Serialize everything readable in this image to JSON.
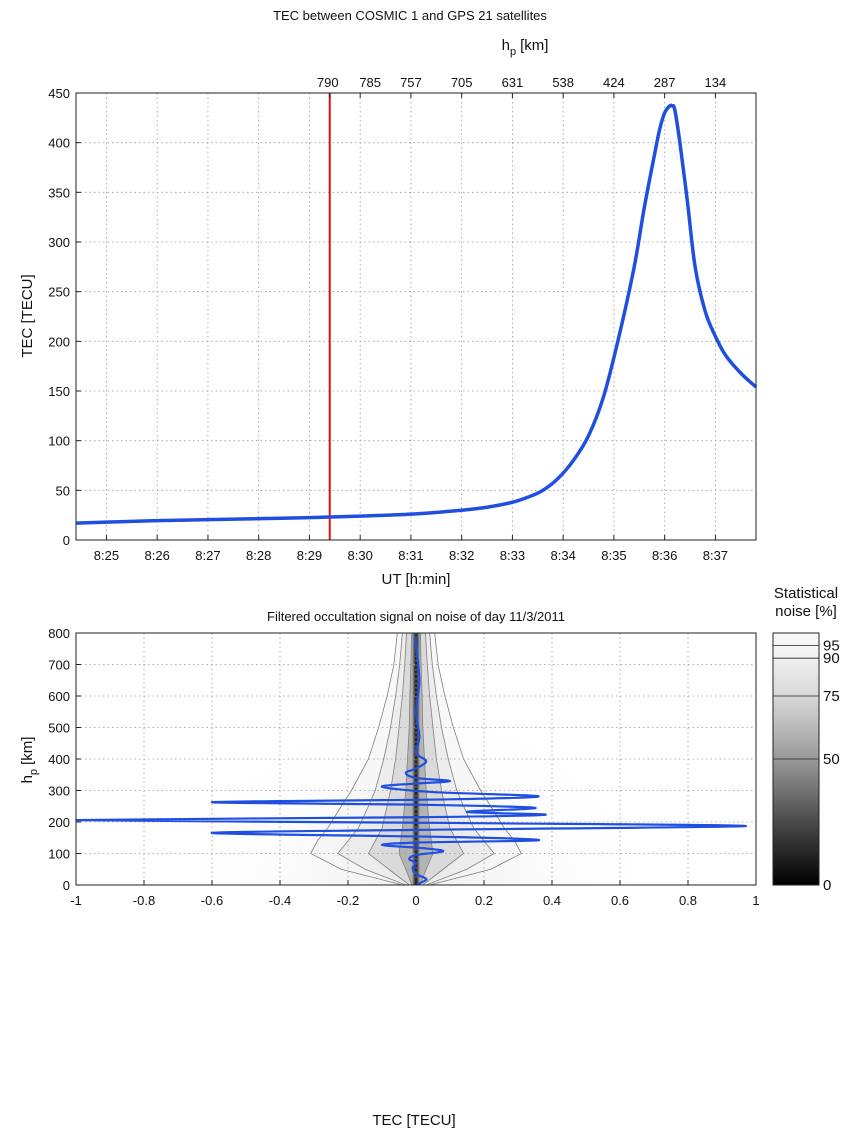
{
  "chart_data": [
    {
      "type": "line",
      "title": "TEC between COSMIC 1 and GPS 21 satellites",
      "xlabel": "UT [h:min]",
      "ylabel": "TEC [TECU]",
      "top_axis_label": "h",
      "top_axis_label_sub": "p",
      "top_axis_label_unit": "[km]",
      "xlim": [
        "8:24.4",
        "8:37.8"
      ],
      "xlim_min": [
        504.4,
        517.8
      ],
      "ylim": [
        0,
        450
      ],
      "x_ticks": [
        "8:25",
        "8:26",
        "8:27",
        "8:28",
        "8:29",
        "8:30",
        "8:31",
        "8:32",
        "8:33",
        "8:34",
        "8:35",
        "8:36",
        "8:37"
      ],
      "x_ticks_min": [
        505,
        506,
        507,
        508,
        509,
        510,
        511,
        512,
        513,
        514,
        515,
        516,
        517
      ],
      "y_ticks": [
        0,
        50,
        100,
        150,
        200,
        250,
        300,
        350,
        400,
        450
      ],
      "top_ticks": [
        "790",
        "785",
        "757",
        "705",
        "631",
        "538",
        "424",
        "287",
        "134"
      ],
      "top_ticks_min": [
        509.4,
        510,
        511,
        512,
        513,
        514,
        515,
        516,
        517
      ],
      "marker_time": "8:29.4",
      "marker_time_min": 509.4,
      "marker_color": "#e01010",
      "grid": true,
      "series": [
        {
          "color": "#1f4fe0",
          "x_min": [
            504.4,
            505,
            506,
            507,
            508,
            509,
            510,
            511,
            512,
            512.5,
            513,
            513.3,
            513.6,
            513.9,
            514.2,
            514.5,
            514.8,
            515.1,
            515.4,
            515.6,
            515.8,
            515.9,
            516.0,
            516.1,
            516.15,
            516.2,
            516.3,
            516.45,
            516.6,
            516.8,
            517.0,
            517.2,
            517.5,
            517.8
          ],
          "y": [
            17,
            18,
            19.5,
            20.5,
            21.5,
            22.5,
            24,
            26,
            30,
            33,
            38,
            43,
            50,
            62,
            80,
            105,
            145,
            205,
            275,
            335,
            388,
            413,
            430,
            437,
            437,
            433,
            400,
            340,
            275,
            230,
            205,
            186,
            168,
            154
          ]
        }
      ]
    },
    {
      "type": "heatmap",
      "title": "Filtered occultation signal on noise of day 11/3/2011",
      "xlabel": "TEC [TECU]",
      "ylabel": "h",
      "ylabel_sub": "p",
      "ylabel_unit": "[km]",
      "xlim": [
        -1,
        1
      ],
      "ylim": [
        0,
        800
      ],
      "x_ticks": [
        "-1",
        "-0.8",
        "-0.6",
        "-0.4",
        "-0.2",
        "0",
        "0.2",
        "0.4",
        "0.6",
        "0.8",
        "1"
      ],
      "y_ticks": [
        0,
        100,
        200,
        300,
        400,
        500,
        600,
        700,
        800
      ],
      "grid": true,
      "colorbar": {
        "title_line1": "Statistical",
        "title_line2": "noise [%]",
        "ticks": [
          0,
          50,
          75,
          90,
          95
        ]
      },
      "noise_contours": [
        {
          "level": 50,
          "profile": [
            [
              0,
              0.012
            ],
            [
              50,
              0.03
            ],
            [
              100,
              0.05
            ],
            [
              140,
              0.045
            ],
            [
              180,
              0.04
            ],
            [
              250,
              0.034
            ],
            [
              300,
              0.03
            ],
            [
              400,
              0.025
            ],
            [
              500,
              0.02
            ],
            [
              600,
              0.018
            ],
            [
              700,
              0.015
            ],
            [
              800,
              0.013
            ]
          ]
        },
        {
          "level": 75,
          "profile": [
            [
              0,
              0.02
            ],
            [
              50,
              0.08
            ],
            [
              100,
              0.14
            ],
            [
              140,
              0.12
            ],
            [
              180,
              0.1
            ],
            [
              250,
              0.085
            ],
            [
              300,
              0.075
            ],
            [
              400,
              0.06
            ],
            [
              500,
              0.05
            ],
            [
              600,
              0.04
            ],
            [
              700,
              0.033
            ],
            [
              800,
              0.028
            ]
          ]
        },
        {
          "level": 90,
          "profile": [
            [
              0,
              0.03
            ],
            [
              50,
              0.15
            ],
            [
              100,
              0.23
            ],
            [
              140,
              0.2
            ],
            [
              180,
              0.17
            ],
            [
              250,
              0.14
            ],
            [
              300,
              0.12
            ],
            [
              400,
              0.095
            ],
            [
              500,
              0.075
            ],
            [
              600,
              0.06
            ],
            [
              700,
              0.048
            ],
            [
              800,
              0.04
            ]
          ]
        },
        {
          "level": 95,
          "profile": [
            [
              0,
              0.04
            ],
            [
              50,
              0.22
            ],
            [
              100,
              0.31
            ],
            [
              140,
              0.29
            ],
            [
              180,
              0.26
            ],
            [
              250,
              0.22
            ],
            [
              300,
              0.19
            ],
            [
              400,
              0.14
            ],
            [
              500,
              0.11
            ],
            [
              600,
              0.085
            ],
            [
              700,
              0.065
            ],
            [
              800,
              0.055
            ]
          ]
        }
      ],
      "series": [
        {
          "color": "#1f4fe0",
          "x": [
            0.0,
            0.02,
            0.03,
            0.0,
            -0.01,
            0.0,
            -0.02,
            0.0,
            0.08,
            0.02,
            -0.1,
            0.01,
            0.36,
            0.12,
            -0.6,
            0.0,
            0.97,
            0.1,
            -1.0,
            0.0,
            0.38,
            0.15,
            0.35,
            0.0,
            -0.6,
            0.1,
            0.36,
            0.05,
            -0.1,
            0.0,
            0.1,
            0.0,
            -0.03,
            0.0,
            0.03,
            0.0,
            0.01,
            0.0,
            0.01,
            0.0,
            0.0
          ],
          "y": [
            0,
            10,
            20,
            35,
            55,
            70,
            82,
            95,
            107,
            117,
            127,
            135,
            142,
            152,
            165,
            175,
            187,
            197,
            206,
            215,
            223,
            232,
            245,
            255,
            263,
            272,
            282,
            295,
            312,
            322,
            330,
            340,
            356,
            370,
            393,
            420,
            470,
            550,
            650,
            760,
            790
          ]
        }
      ]
    }
  ]
}
